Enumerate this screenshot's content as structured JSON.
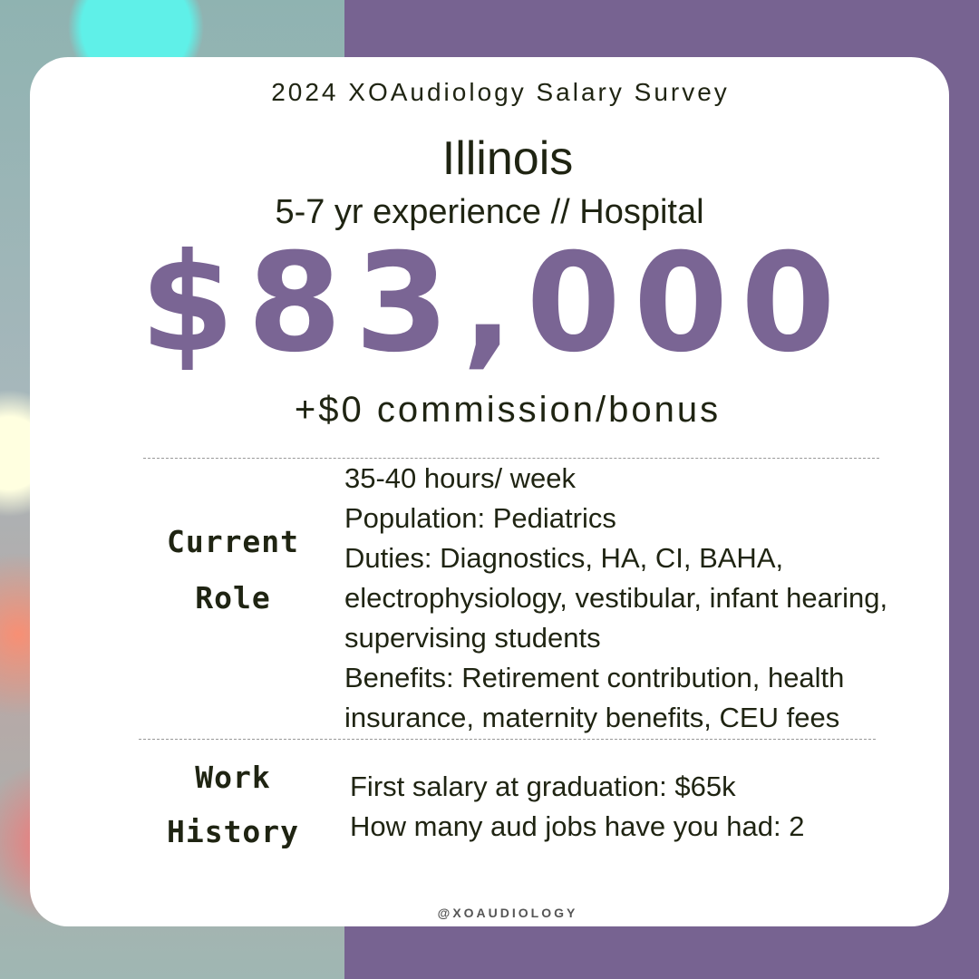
{
  "header": {
    "title": "2024 XOAudiology Salary Survey",
    "state": "Illinois",
    "subtitle": "5-7 yr experience // Hospital"
  },
  "salary": {
    "amount": "$83,000",
    "bonus": "+$0 commission/bonus"
  },
  "current_role": {
    "label": [
      "Current",
      "Role"
    ],
    "lines": [
      "35-40 hours/ week",
      "Population: Pediatrics",
      "Duties: Diagnostics, HA, CI, BAHA, electrophysiology, vestibular, infant hearing, supervising students",
      "Benefits: Retirement contribution, health insurance, maternity benefits, CEU fees"
    ]
  },
  "work_history": {
    "label": [
      "Work",
      "History"
    ],
    "lines": [
      "First salary at graduation: $65k",
      "How many aud jobs have you had: 2"
    ]
  },
  "footer": {
    "handle": "@XOAUDIOLOGY"
  }
}
